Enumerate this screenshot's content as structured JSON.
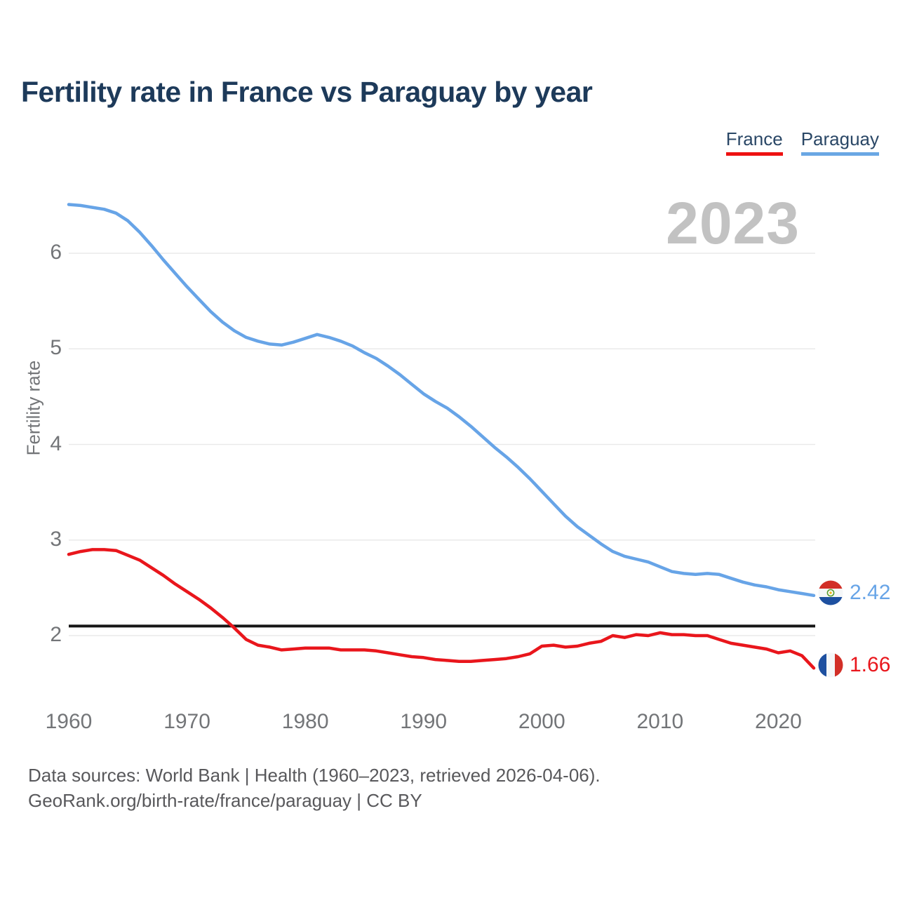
{
  "title": "Fertility rate in France vs Paraguay by year",
  "watermark": "2023",
  "legend": [
    {
      "label": "France",
      "color": "#e9161c"
    },
    {
      "label": "Paraguay",
      "color": "#6aa7e4"
    }
  ],
  "end_labels": [
    {
      "series": "Paraguay",
      "value": "2.42"
    },
    {
      "series": "France",
      "value": "1.66"
    }
  ],
  "footer": {
    "line1": "Data sources: World Bank | Health (1960–2023, retrieved 2026-04-06).",
    "line2": "GeoRank.org/birth-rate/france/paraguay | CC BY"
  },
  "chart_data": {
    "type": "line",
    "title": "Fertility rate in France vs Paraguay by year",
    "xlabel": "",
    "ylabel": "Fertility rate",
    "x": [
      1960,
      1961,
      1962,
      1963,
      1964,
      1965,
      1966,
      1967,
      1968,
      1969,
      1970,
      1971,
      1972,
      1973,
      1974,
      1975,
      1976,
      1977,
      1978,
      1979,
      1980,
      1981,
      1982,
      1983,
      1984,
      1985,
      1986,
      1987,
      1988,
      1989,
      1990,
      1991,
      1992,
      1993,
      1994,
      1995,
      1996,
      1997,
      1998,
      1999,
      2000,
      2001,
      2002,
      2003,
      2004,
      2005,
      2006,
      2007,
      2008,
      2009,
      2010,
      2011,
      2012,
      2013,
      2014,
      2015,
      2016,
      2017,
      2018,
      2019,
      2020,
      2021,
      2022,
      2023
    ],
    "series": [
      {
        "name": "Paraguay",
        "color": "#67a4e7",
        "values": [
          6.51,
          6.5,
          6.48,
          6.46,
          6.42,
          6.34,
          6.22,
          6.08,
          5.93,
          5.79,
          5.65,
          5.52,
          5.39,
          5.28,
          5.19,
          5.12,
          5.08,
          5.05,
          5.04,
          5.07,
          5.11,
          5.15,
          5.12,
          5.08,
          5.03,
          4.96,
          4.9,
          4.82,
          4.73,
          4.63,
          4.53,
          4.45,
          4.38,
          4.29,
          4.19,
          4.08,
          3.97,
          3.87,
          3.76,
          3.64,
          3.51,
          3.38,
          3.25,
          3.14,
          3.05,
          2.96,
          2.88,
          2.83,
          2.8,
          2.77,
          2.72,
          2.67,
          2.65,
          2.64,
          2.65,
          2.64,
          2.6,
          2.56,
          2.53,
          2.51,
          2.48,
          2.46,
          2.44,
          2.42
        ]
      },
      {
        "name": "France",
        "color": "#e9161c",
        "values": [
          2.85,
          2.88,
          2.9,
          2.9,
          2.89,
          2.84,
          2.79,
          2.71,
          2.63,
          2.54,
          2.46,
          2.38,
          2.29,
          2.19,
          2.08,
          1.96,
          1.9,
          1.88,
          1.85,
          1.86,
          1.87,
          1.87,
          1.87,
          1.85,
          1.85,
          1.85,
          1.84,
          1.82,
          1.8,
          1.78,
          1.77,
          1.75,
          1.74,
          1.73,
          1.73,
          1.74,
          1.75,
          1.76,
          1.78,
          1.81,
          1.89,
          1.9,
          1.88,
          1.89,
          1.92,
          1.94,
          2.0,
          1.98,
          2.01,
          2.0,
          2.03,
          2.01,
          2.01,
          2.0,
          2.0,
          1.96,
          1.92,
          1.9,
          1.88,
          1.86,
          1.82,
          1.84,
          1.79,
          1.66
        ]
      }
    ],
    "yticks": [
      2,
      3,
      4,
      5,
      6
    ],
    "xticks": [
      1960,
      1970,
      1980,
      1990,
      2000,
      2010,
      2020
    ],
    "ylim": [
      1.5,
      6.7
    ],
    "xlim": [
      1960,
      2023
    ],
    "reference_line": {
      "value": 2.1,
      "color": "#161616"
    },
    "grid": "horizontal",
    "legend_position": "top-right"
  }
}
